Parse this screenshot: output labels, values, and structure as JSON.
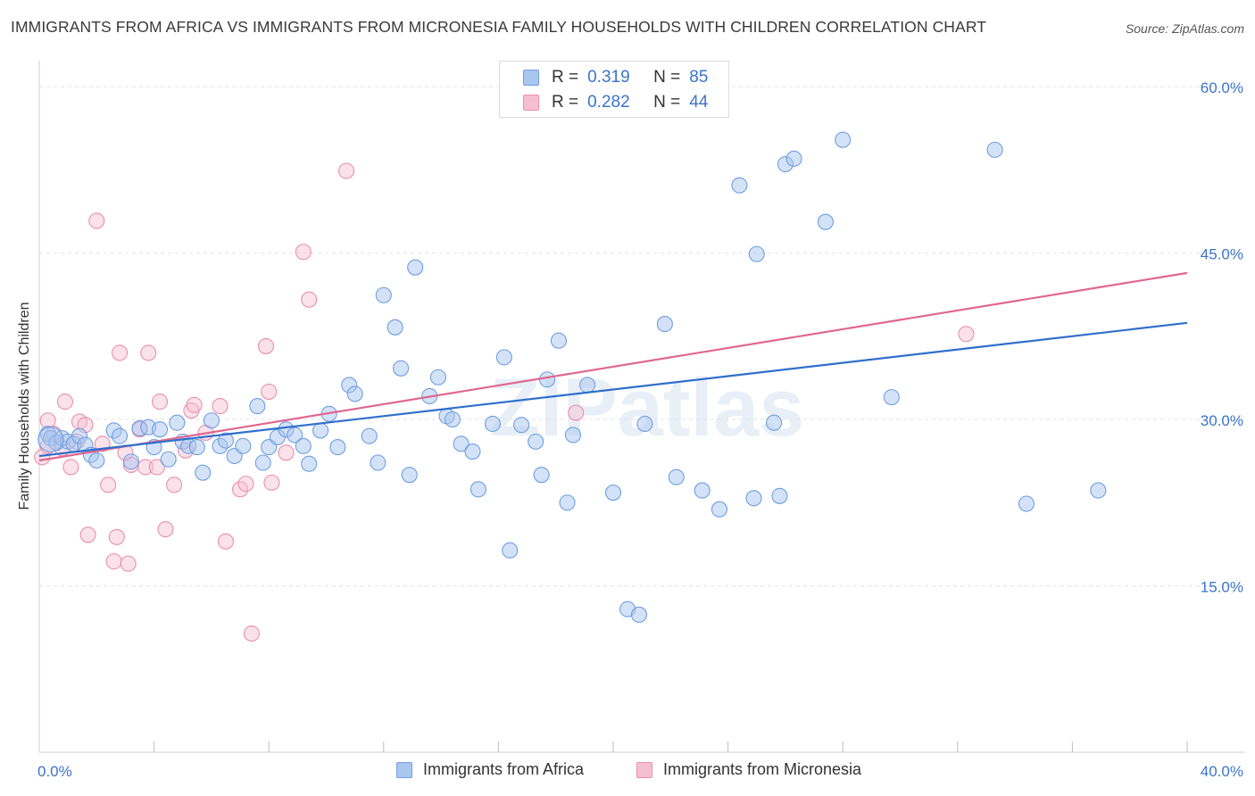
{
  "title": "IMMIGRANTS FROM AFRICA VS IMMIGRANTS FROM MICRONESIA FAMILY HOUSEHOLDS WITH CHILDREN CORRELATION CHART",
  "source": "Source: ZipAtlas.com",
  "watermark": "ZIPatlas",
  "colors": {
    "blue_fill": "#a9c6ef",
    "blue_stroke": "#6f9fe0",
    "blue_line": "#2f6fcc",
    "pink_fill": "#f6bfd0",
    "pink_stroke": "#ea8fab",
    "pink_line": "#e0668e",
    "tick_text": "#3b74c8"
  },
  "legend": {
    "rows": [
      {
        "r_label": "R =",
        "r_value": "0.319",
        "n_label": "N =",
        "n_value": "85"
      },
      {
        "r_label": "R =",
        "r_value": "0.282",
        "n_label": "N =",
        "n_value": "44"
      }
    ]
  },
  "bottom_legend": {
    "africa": "Immigrants from Africa",
    "micronesia": "Immigrants from Micronesia"
  },
  "chart_data": {
    "type": "scatter",
    "title": "IMMIGRANTS FROM AFRICA VS IMMIGRANTS FROM MICRONESIA FAMILY HOUSEHOLDS WITH CHILDREN CORRELATION CHART",
    "xlabel": "",
    "ylabel": "Family Households with Children",
    "xlim": [
      0,
      40
    ],
    "ylim": [
      0,
      60
    ],
    "x_tick_labels": [
      "0.0%",
      "40.0%"
    ],
    "y_ticks": [
      15,
      30,
      45,
      60
    ],
    "y_tick_labels": [
      "15.0%",
      "30.0%",
      "45.0%",
      "60.0%"
    ],
    "grid": true,
    "legend_position": "top-center",
    "series": [
      {
        "name": "Immigrants from Africa",
        "color": "#a9c6ef",
        "trendline": {
          "x": [
            0,
            40
          ],
          "y": [
            26.7,
            38.7
          ]
        },
        "points": [
          [
            0.3,
            28.7
          ],
          [
            0.4,
            28.3
          ],
          [
            0.6,
            27.9
          ],
          [
            0.8,
            28.3
          ],
          [
            1.0,
            28.0
          ],
          [
            1.2,
            27.8
          ],
          [
            1.4,
            28.5
          ],
          [
            1.6,
            27.7
          ],
          [
            1.8,
            26.8
          ],
          [
            2.0,
            26.3
          ],
          [
            2.6,
            29.0
          ],
          [
            2.8,
            28.5
          ],
          [
            3.2,
            26.2
          ],
          [
            3.5,
            29.2
          ],
          [
            3.8,
            29.3
          ],
          [
            4.0,
            27.5
          ],
          [
            4.2,
            29.1
          ],
          [
            4.5,
            26.4
          ],
          [
            4.8,
            29.7
          ],
          [
            5.0,
            28.0
          ],
          [
            5.2,
            27.6
          ],
          [
            5.5,
            27.5
          ],
          [
            5.7,
            25.2
          ],
          [
            6.0,
            29.9
          ],
          [
            6.3,
            27.6
          ],
          [
            6.5,
            28.1
          ],
          [
            6.8,
            26.7
          ],
          [
            7.1,
            27.6
          ],
          [
            7.6,
            31.2
          ],
          [
            7.8,
            26.1
          ],
          [
            8.0,
            27.5
          ],
          [
            8.3,
            28.4
          ],
          [
            8.6,
            29.1
          ],
          [
            8.9,
            28.6
          ],
          [
            9.2,
            27.6
          ],
          [
            9.4,
            26.0
          ],
          [
            9.8,
            29.0
          ],
          [
            10.1,
            30.5
          ],
          [
            10.4,
            27.5
          ],
          [
            10.8,
            33.1
          ],
          [
            11.0,
            32.3
          ],
          [
            11.5,
            28.5
          ],
          [
            11.8,
            26.1
          ],
          [
            12.0,
            41.2
          ],
          [
            12.4,
            38.3
          ],
          [
            12.6,
            34.6
          ],
          [
            12.9,
            25.0
          ],
          [
            13.1,
            43.7
          ],
          [
            13.6,
            32.1
          ],
          [
            13.9,
            33.8
          ],
          [
            14.2,
            30.3
          ],
          [
            14.4,
            30.0
          ],
          [
            14.7,
            27.8
          ],
          [
            15.1,
            27.1
          ],
          [
            15.3,
            23.7
          ],
          [
            15.8,
            29.6
          ],
          [
            16.2,
            35.6
          ],
          [
            16.4,
            18.2
          ],
          [
            16.8,
            29.5
          ],
          [
            17.3,
            28.0
          ],
          [
            17.5,
            25.0
          ],
          [
            17.7,
            33.6
          ],
          [
            18.1,
            37.1
          ],
          [
            18.4,
            22.5
          ],
          [
            18.6,
            28.6
          ],
          [
            19.1,
            33.1
          ],
          [
            20.0,
            23.4
          ],
          [
            20.5,
            12.9
          ],
          [
            20.9,
            12.4
          ],
          [
            21.1,
            29.6
          ],
          [
            21.8,
            38.6
          ],
          [
            22.2,
            24.8
          ],
          [
            23.1,
            23.6
          ],
          [
            23.7,
            21.9
          ],
          [
            24.4,
            51.1
          ],
          [
            24.9,
            22.9
          ],
          [
            25.0,
            44.9
          ],
          [
            25.6,
            29.7
          ],
          [
            26.0,
            53.0
          ],
          [
            26.3,
            53.5
          ],
          [
            25.8,
            23.1
          ],
          [
            27.4,
            47.8
          ],
          [
            28.0,
            55.2
          ],
          [
            29.7,
            32.0
          ],
          [
            33.3,
            54.3
          ],
          [
            34.4,
            22.4
          ],
          [
            36.9,
            23.6
          ]
        ]
      },
      {
        "name": "Immigrants from Micronesia",
        "color": "#f6bfd0",
        "trendline": {
          "x": [
            0,
            40
          ],
          "y": [
            26.3,
            43.2
          ]
        },
        "points": [
          [
            0.1,
            26.6
          ],
          [
            0.3,
            27.6
          ],
          [
            0.3,
            29.9
          ],
          [
            0.5,
            28.7
          ],
          [
            0.8,
            27.4
          ],
          [
            0.9,
            31.6
          ],
          [
            1.1,
            25.7
          ],
          [
            1.3,
            28.0
          ],
          [
            1.4,
            29.8
          ],
          [
            1.6,
            29.5
          ],
          [
            1.7,
            19.6
          ],
          [
            2.0,
            47.9
          ],
          [
            2.2,
            27.8
          ],
          [
            2.4,
            24.1
          ],
          [
            2.6,
            17.2
          ],
          [
            2.7,
            19.4
          ],
          [
            2.8,
            36.0
          ],
          [
            3.0,
            27.0
          ],
          [
            3.1,
            17.0
          ],
          [
            3.2,
            25.9
          ],
          [
            3.5,
            29.1
          ],
          [
            3.7,
            25.7
          ],
          [
            3.8,
            36.0
          ],
          [
            4.1,
            25.7
          ],
          [
            4.2,
            31.6
          ],
          [
            4.4,
            20.1
          ],
          [
            4.7,
            24.1
          ],
          [
            5.1,
            27.2
          ],
          [
            5.3,
            30.8
          ],
          [
            5.4,
            31.3
          ],
          [
            5.8,
            28.8
          ],
          [
            6.3,
            31.2
          ],
          [
            6.5,
            19.0
          ],
          [
            7.0,
            23.7
          ],
          [
            7.2,
            24.2
          ],
          [
            7.4,
            10.7
          ],
          [
            7.9,
            36.6
          ],
          [
            8.0,
            32.5
          ],
          [
            8.1,
            24.3
          ],
          [
            8.6,
            27.0
          ],
          [
            9.2,
            45.1
          ],
          [
            9.4,
            40.8
          ],
          [
            10.7,
            52.4
          ],
          [
            18.7,
            30.6
          ],
          [
            32.3,
            37.7
          ]
        ]
      }
    ]
  }
}
